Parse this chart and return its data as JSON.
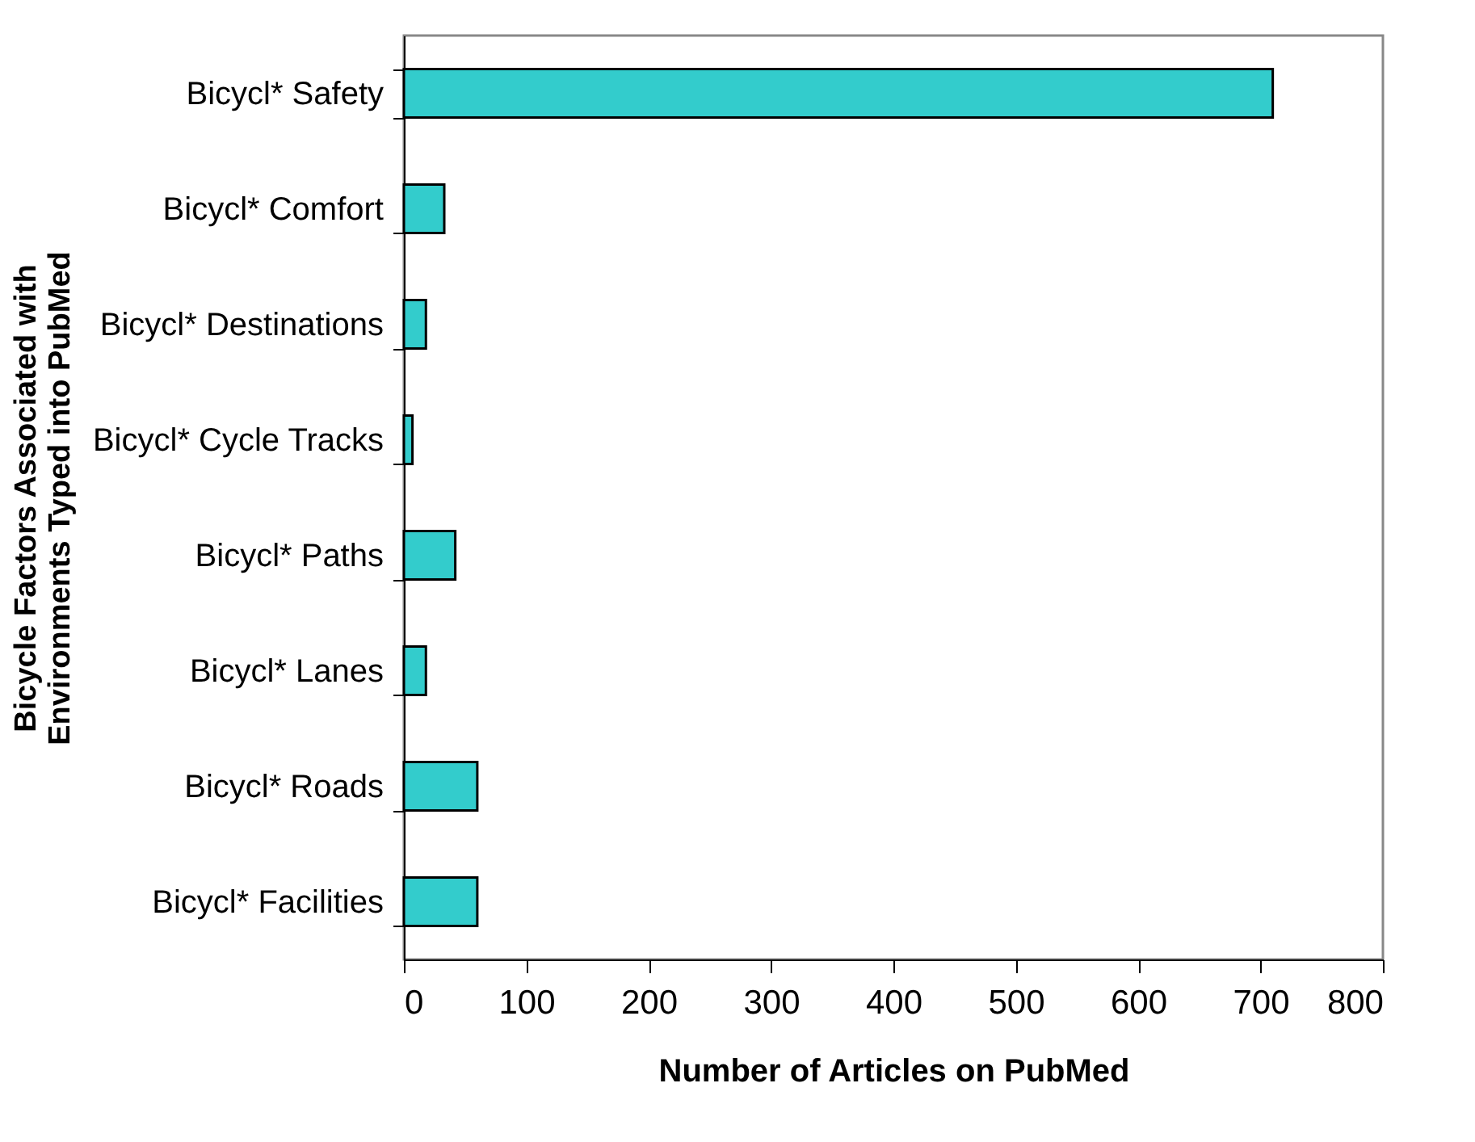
{
  "chart_data": {
    "type": "bar",
    "orientation": "horizontal",
    "xlabel": "Number of Articles on PubMed",
    "ylabel": "Bicycle Factors Associated with\nEnvironments Typed into PubMed",
    "categories": [
      "Bicycl* Safety",
      "Bicycl* Comfort",
      "Bicycl* Destinations",
      "Bicycl* Cycle Tracks",
      "Bicycl* Paths",
      "Bicycl* Lanes",
      "Bicycl* Roads",
      "Bicycl* Facilities"
    ],
    "values": [
      710,
      33,
      18,
      7,
      42,
      18,
      60,
      60
    ],
    "color": "#33cccc",
    "xlim": [
      0,
      800
    ],
    "xticks": [
      0,
      100,
      200,
      300,
      400,
      500,
      600,
      700,
      800
    ],
    "grid": false
  }
}
